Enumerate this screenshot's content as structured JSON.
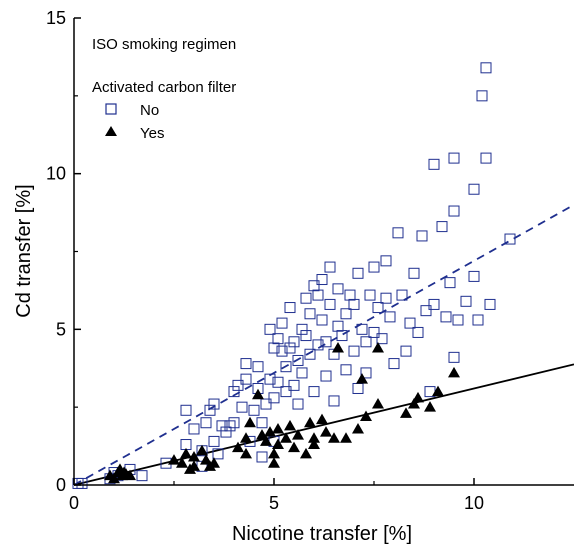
{
  "chart_data": {
    "type": "scatter",
    "title": "",
    "xlabel": "Nicotine transfer [%]",
    "ylabel": "Cd transfer [%]",
    "xlim": [
      0,
      12.5
    ],
    "ylim": [
      0,
      15
    ],
    "x_ticks": [
      0,
      5,
      10
    ],
    "y_ticks": [
      0,
      5,
      10,
      15
    ],
    "grid": false,
    "annotations": {
      "regimen": "ISO smoking regimen",
      "legend_title": "Activated carbon filter"
    },
    "legend_position": "top-left",
    "colors": {
      "no": "#1f2f8f",
      "yes": "#000000",
      "axis": "#000000"
    },
    "series": [
      {
        "name": "No",
        "marker": "open-square",
        "points": [
          [
            0.1,
            0.05
          ],
          [
            0.2,
            0.05
          ],
          [
            0.9,
            0.2
          ],
          [
            1.0,
            0.4
          ],
          [
            1.1,
            0.3
          ],
          [
            1.4,
            0.5
          ],
          [
            1.7,
            0.3
          ],
          [
            2.3,
            0.7
          ],
          [
            2.8,
            1.3
          ],
          [
            2.8,
            2.4
          ],
          [
            3.0,
            1.8
          ],
          [
            3.2,
            0.6
          ],
          [
            3.3,
            2.0
          ],
          [
            3.4,
            2.4
          ],
          [
            3.5,
            2.6
          ],
          [
            3.5,
            1.4
          ],
          [
            3.6,
            1.0
          ],
          [
            3.7,
            1.9
          ],
          [
            3.8,
            1.7
          ],
          [
            3.9,
            1.9
          ],
          [
            4.0,
            2.0
          ],
          [
            4.0,
            3.0
          ],
          [
            4.1,
            3.2
          ],
          [
            4.2,
            2.5
          ],
          [
            4.3,
            3.4
          ],
          [
            4.3,
            3.9
          ],
          [
            4.4,
            1.4
          ],
          [
            4.5,
            2.4
          ],
          [
            4.6,
            3.1
          ],
          [
            4.6,
            3.8
          ],
          [
            4.7,
            2.0
          ],
          [
            4.8,
            2.6
          ],
          [
            4.9,
            3.4
          ],
          [
            4.9,
            5.0
          ],
          [
            5.0,
            1.4
          ],
          [
            5.0,
            2.8
          ],
          [
            5.0,
            4.4
          ],
          [
            5.1,
            4.7
          ],
          [
            5.1,
            3.3
          ],
          [
            5.2,
            4.3
          ],
          [
            5.2,
            5.2
          ],
          [
            5.3,
            3.0
          ],
          [
            5.3,
            3.8
          ],
          [
            5.4,
            4.4
          ],
          [
            5.4,
            5.7
          ],
          [
            5.5,
            3.2
          ],
          [
            5.5,
            4.6
          ],
          [
            5.6,
            2.6
          ],
          [
            5.6,
            4.0
          ],
          [
            5.7,
            5.0
          ],
          [
            5.7,
            3.6
          ],
          [
            5.8,
            4.8
          ],
          [
            5.8,
            6.0
          ],
          [
            5.9,
            4.2
          ],
          [
            5.9,
            5.5
          ],
          [
            6.0,
            6.4
          ],
          [
            6.0,
            3.0
          ],
          [
            6.1,
            4.5
          ],
          [
            6.1,
            6.1
          ],
          [
            6.2,
            6.6
          ],
          [
            6.2,
            5.3
          ],
          [
            6.3,
            3.5
          ],
          [
            6.3,
            4.6
          ],
          [
            6.4,
            5.8
          ],
          [
            6.4,
            7.0
          ],
          [
            6.5,
            4.2
          ],
          [
            6.5,
            2.7
          ],
          [
            6.6,
            5.1
          ],
          [
            6.6,
            6.3
          ],
          [
            6.7,
            4.8
          ],
          [
            6.8,
            3.7
          ],
          [
            6.8,
            5.5
          ],
          [
            6.9,
            6.1
          ],
          [
            7.0,
            4.3
          ],
          [
            7.0,
            5.8
          ],
          [
            7.1,
            6.8
          ],
          [
            7.1,
            3.1
          ],
          [
            7.2,
            5.0
          ],
          [
            7.3,
            4.6
          ],
          [
            7.3,
            3.6
          ],
          [
            7.4,
            6.1
          ],
          [
            7.5,
            4.9
          ],
          [
            7.5,
            7.0
          ],
          [
            7.6,
            5.7
          ],
          [
            7.7,
            4.7
          ],
          [
            7.8,
            7.2
          ],
          [
            7.8,
            6.0
          ],
          [
            7.9,
            5.4
          ],
          [
            8.0,
            3.9
          ],
          [
            8.1,
            8.1
          ],
          [
            8.2,
            6.1
          ],
          [
            8.3,
            4.3
          ],
          [
            8.4,
            5.2
          ],
          [
            8.5,
            6.8
          ],
          [
            8.6,
            4.9
          ],
          [
            8.7,
            8.0
          ],
          [
            8.8,
            5.6
          ],
          [
            8.9,
            3.0
          ],
          [
            9.0,
            5.8
          ],
          [
            9.0,
            10.3
          ],
          [
            9.2,
            8.3
          ],
          [
            9.3,
            5.4
          ],
          [
            9.4,
            6.5
          ],
          [
            9.5,
            10.5
          ],
          [
            9.5,
            8.8
          ],
          [
            9.5,
            4.1
          ],
          [
            9.6,
            5.3
          ],
          [
            9.8,
            5.9
          ],
          [
            10.0,
            6.7
          ],
          [
            10.0,
            9.5
          ],
          [
            10.1,
            5.3
          ],
          [
            10.2,
            12.5
          ],
          [
            10.3,
            10.5
          ],
          [
            10.3,
            13.4
          ],
          [
            10.4,
            5.8
          ],
          [
            10.9,
            7.9
          ],
          [
            3.2,
            1.1
          ],
          [
            4.7,
            0.9
          ]
        ]
      },
      {
        "name": "Yes",
        "marker": "filled-triangle",
        "points": [
          [
            0.9,
            0.3
          ],
          [
            1.0,
            0.2
          ],
          [
            1.1,
            0.4
          ],
          [
            1.15,
            0.5
          ],
          [
            1.2,
            0.3
          ],
          [
            1.25,
            0.4
          ],
          [
            1.3,
            0.35
          ],
          [
            1.4,
            0.3
          ],
          [
            2.5,
            0.8
          ],
          [
            2.7,
            0.7
          ],
          [
            2.8,
            1.0
          ],
          [
            2.9,
            0.5
          ],
          [
            3.0,
            0.9
          ],
          [
            3.0,
            0.6
          ],
          [
            3.2,
            1.1
          ],
          [
            3.3,
            0.8
          ],
          [
            3.4,
            0.6
          ],
          [
            3.5,
            0.7
          ],
          [
            4.1,
            1.2
          ],
          [
            4.3,
            1.5
          ],
          [
            4.3,
            1.0
          ],
          [
            4.4,
            2.0
          ],
          [
            4.7,
            1.6
          ],
          [
            4.8,
            1.4
          ],
          [
            4.9,
            1.7
          ],
          [
            5.0,
            0.7
          ],
          [
            5.0,
            1.0
          ],
          [
            5.1,
            1.8
          ],
          [
            5.1,
            1.3
          ],
          [
            5.3,
            1.5
          ],
          [
            5.4,
            1.9
          ],
          [
            5.5,
            1.2
          ],
          [
            5.6,
            1.6
          ],
          [
            5.8,
            1.0
          ],
          [
            5.9,
            2.0
          ],
          [
            6.0,
            1.5
          ],
          [
            6.0,
            1.3
          ],
          [
            6.2,
            2.1
          ],
          [
            6.3,
            1.7
          ],
          [
            6.5,
            1.5
          ],
          [
            6.6,
            4.4
          ],
          [
            6.8,
            1.5
          ],
          [
            7.1,
            1.8
          ],
          [
            7.2,
            3.4
          ],
          [
            7.3,
            2.2
          ],
          [
            7.6,
            2.6
          ],
          [
            7.6,
            4.4
          ],
          [
            8.3,
            2.3
          ],
          [
            8.5,
            2.6
          ],
          [
            8.6,
            2.8
          ],
          [
            8.9,
            2.5
          ],
          [
            9.1,
            3.0
          ],
          [
            9.5,
            3.6
          ],
          [
            4.6,
            2.9
          ]
        ]
      }
    ],
    "fit_lines": [
      {
        "series": "No",
        "style": "dashed",
        "slope": 0.72,
        "intercept": 0
      },
      {
        "series": "Yes",
        "style": "solid",
        "slope": 0.31,
        "intercept": 0
      }
    ]
  }
}
